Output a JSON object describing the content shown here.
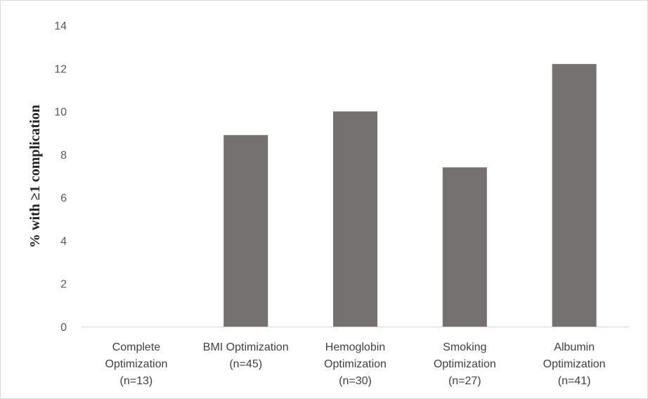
{
  "chart_data": {
    "type": "bar",
    "title": "",
    "xlabel": "",
    "ylabel": "% with ≥1 complication",
    "ylim": [
      0,
      14
    ],
    "yticks": [
      0,
      2,
      4,
      6,
      8,
      10,
      12,
      14
    ],
    "grid": false,
    "categories": [
      [
        "Complete",
        "Optimization",
        "(n=13)"
      ],
      [
        "BMI Optimization",
        "(n=45)"
      ],
      [
        "Hemoglobin",
        "Optimization",
        "(n=30)"
      ],
      [
        "Smoking",
        "Optimization",
        "(n=27)"
      ],
      [
        "Albumin",
        "Optimization",
        "(n=41)"
      ]
    ],
    "values": [
      0,
      8.9,
      10.0,
      7.4,
      12.2
    ],
    "colors": {
      "bar": "#767171",
      "axis": "#d9d9d9"
    }
  }
}
